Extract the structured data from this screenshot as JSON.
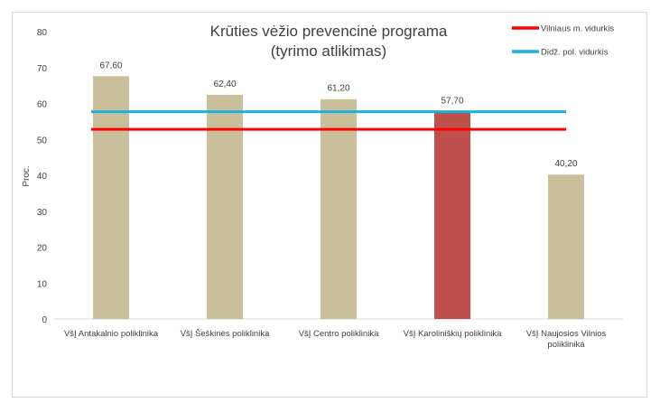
{
  "chart_data": {
    "type": "bar",
    "title_lines": [
      "Krūties vėžio prevencinė programa",
      "(tyrimo atlikimas)"
    ],
    "ylabel": "Proc.",
    "ylim": [
      0,
      80
    ],
    "yticks": [
      0,
      10,
      20,
      30,
      40,
      50,
      60,
      70,
      80
    ],
    "grid": false,
    "categories": [
      [
        "VšĮ Antakalnio poliklinika"
      ],
      [
        "VšĮ Šeškinės poliklinika"
      ],
      [
        "VšĮ Centro poliklinika"
      ],
      [
        "VšĮ Karoliniškių poliklinika"
      ],
      [
        "VšĮ Naujosios Vilnios",
        "poliklinika"
      ]
    ],
    "values": [
      67.6,
      62.4,
      61.2,
      57.7,
      40.2
    ],
    "value_labels": [
      "67,60",
      "62,40",
      "61,20",
      "57,70",
      "40,20"
    ],
    "bar_colors": [
      "#c9bf9a",
      "#c9bf9a",
      "#c9bf9a",
      "#c0504d",
      "#c9bf9a"
    ],
    "reference_lines": [
      {
        "name": "Vilniaus m. vidurkis",
        "value": 52.8,
        "color": "#ff0000"
      },
      {
        "name": "Didž. pol. vidurkis",
        "value": 57.7,
        "color": "#1ab0e0"
      }
    ],
    "legend_position": "top-right"
  }
}
